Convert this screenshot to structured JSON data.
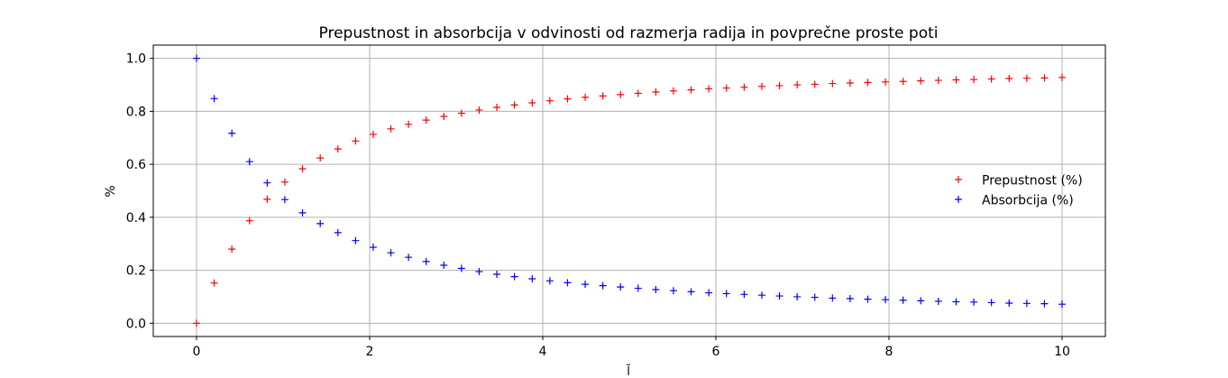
{
  "chart_data": {
    "type": "scatter",
    "title": "Prepustnost in absorbcija v odvinosti od razmerja radija in povprečne proste poti",
    "xlabel": "l̃",
    "ylabel": "%",
    "xlim": [
      -0.5,
      10.5
    ],
    "ylim": [
      -0.05,
      1.05
    ],
    "xticks": [
      0,
      2,
      4,
      6,
      8,
      10
    ],
    "xtick_labels": [
      "0",
      "2",
      "4",
      "6",
      "8",
      "10"
    ],
    "yticks": [
      0.0,
      0.2,
      0.4,
      0.6,
      0.8,
      1.0
    ],
    "ytick_labels": [
      "0.0",
      "0.2",
      "0.4",
      "0.6",
      "0.8",
      "1.0"
    ],
    "grid": true,
    "legend_position": "center-right",
    "marker": "+",
    "x": [
      0.0,
      0.204,
      0.408,
      0.612,
      0.816,
      1.02,
      1.224,
      1.429,
      1.633,
      1.837,
      2.041,
      2.245,
      2.449,
      2.653,
      2.857,
      3.061,
      3.265,
      3.469,
      3.673,
      3.878,
      4.082,
      4.286,
      4.49,
      4.694,
      4.898,
      5.102,
      5.306,
      5.51,
      5.714,
      5.918,
      6.122,
      6.327,
      6.531,
      6.735,
      6.939,
      7.143,
      7.347,
      7.551,
      7.755,
      7.959,
      8.163,
      8.367,
      8.571,
      8.776,
      8.98,
      9.184,
      9.388,
      9.592,
      9.796,
      10.0
    ],
    "series": [
      {
        "name": "Prepustnost (%)",
        "color": "#ff0000",
        "values": [
          0.0,
          0.152,
          0.28,
          0.387,
          0.468,
          0.533,
          0.583,
          0.624,
          0.658,
          0.688,
          0.713,
          0.734,
          0.751,
          0.767,
          0.781,
          0.793,
          0.805,
          0.815,
          0.824,
          0.832,
          0.84,
          0.847,
          0.853,
          0.858,
          0.863,
          0.868,
          0.873,
          0.877,
          0.881,
          0.885,
          0.888,
          0.891,
          0.894,
          0.897,
          0.9,
          0.902,
          0.905,
          0.907,
          0.909,
          0.911,
          0.913,
          0.915,
          0.917,
          0.919,
          0.92,
          0.922,
          0.924,
          0.925,
          0.926,
          0.928
        ]
      },
      {
        "name": "Absorbcija (%)",
        "color": "#0000ff",
        "values": [
          1.0,
          0.848,
          0.717,
          0.61,
          0.53,
          0.467,
          0.417,
          0.376,
          0.342,
          0.312,
          0.287,
          0.266,
          0.249,
          0.233,
          0.219,
          0.207,
          0.195,
          0.185,
          0.176,
          0.168,
          0.16,
          0.153,
          0.147,
          0.142,
          0.137,
          0.132,
          0.127,
          0.123,
          0.119,
          0.115,
          0.112,
          0.109,
          0.106,
          0.103,
          0.1,
          0.098,
          0.095,
          0.093,
          0.091,
          0.089,
          0.087,
          0.085,
          0.083,
          0.081,
          0.08,
          0.078,
          0.076,
          0.075,
          0.074,
          0.072
        ]
      }
    ]
  }
}
